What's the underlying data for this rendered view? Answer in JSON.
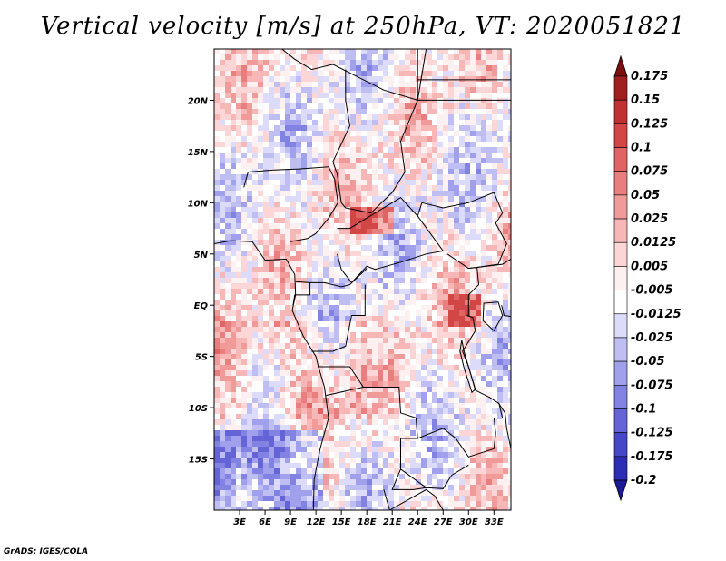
{
  "title": "Vertical velocity [m/s] at 250hPa, VT: 2020051821",
  "credit": "GrADS: IGES/COLA",
  "map": {
    "lon_range": [
      0,
      35
    ],
    "lat_range": [
      -20,
      25
    ],
    "lat_ticks": [
      {
        "value": 20,
        "label": "20N"
      },
      {
        "value": 15,
        "label": "15N"
      },
      {
        "value": 10,
        "label": "10N"
      },
      {
        "value": 5,
        "label": "5N"
      },
      {
        "value": 0,
        "label": "EQ"
      },
      {
        "value": -5,
        "label": "5S"
      },
      {
        "value": -10,
        "label": "10S"
      },
      {
        "value": -15,
        "label": "15S"
      }
    ],
    "lon_ticks": [
      {
        "value": 3,
        "label": "3E"
      },
      {
        "value": 6,
        "label": "6E"
      },
      {
        "value": 9,
        "label": "9E"
      },
      {
        "value": 12,
        "label": "12E"
      },
      {
        "value": 15,
        "label": "15E"
      },
      {
        "value": 18,
        "label": "18E"
      },
      {
        "value": 21,
        "label": "21E"
      },
      {
        "value": 24,
        "label": "24E"
      },
      {
        "value": 27,
        "label": "27E"
      },
      {
        "value": 30,
        "label": "30E"
      },
      {
        "value": 33,
        "label": "33E"
      }
    ]
  },
  "colorbar": {
    "label_above_top": "0.175",
    "levels": [
      {
        "label": "0.15",
        "color": "#a01e1e"
      },
      {
        "label": "0.125",
        "color": "#c03232"
      },
      {
        "label": "0.1",
        "color": "#d24646"
      },
      {
        "label": "0.075",
        "color": "#e06464"
      },
      {
        "label": "0.05",
        "color": "#e87e7e"
      },
      {
        "label": "0.025",
        "color": "#f09a9a"
      },
      {
        "label": "0.0125",
        "color": "#f7b7b7"
      },
      {
        "label": "0.005",
        "color": "#fcd6d6"
      },
      {
        "label": "-0.005",
        "color": "#fcf0f0"
      },
      {
        "label": "-0.0125",
        "color": "#ffffff"
      },
      {
        "label": "-0.025",
        "color": "#dcdcfa"
      },
      {
        "label": "-0.05",
        "color": "#bebef2"
      },
      {
        "label": "-0.075",
        "color": "#a0a0ec"
      },
      {
        "label": "-0.1",
        "color": "#8282e2"
      },
      {
        "label": "-0.125",
        "color": "#6464d6"
      },
      {
        "label": "-0.175",
        "color": "#4646c8"
      },
      {
        "label": "-0.2",
        "color": "#2c2cb4"
      }
    ],
    "top_triangle_color": "#7d0f0f",
    "bottom_triangle_color": "#1a1a96"
  },
  "colors": {
    "border": "#000000"
  }
}
